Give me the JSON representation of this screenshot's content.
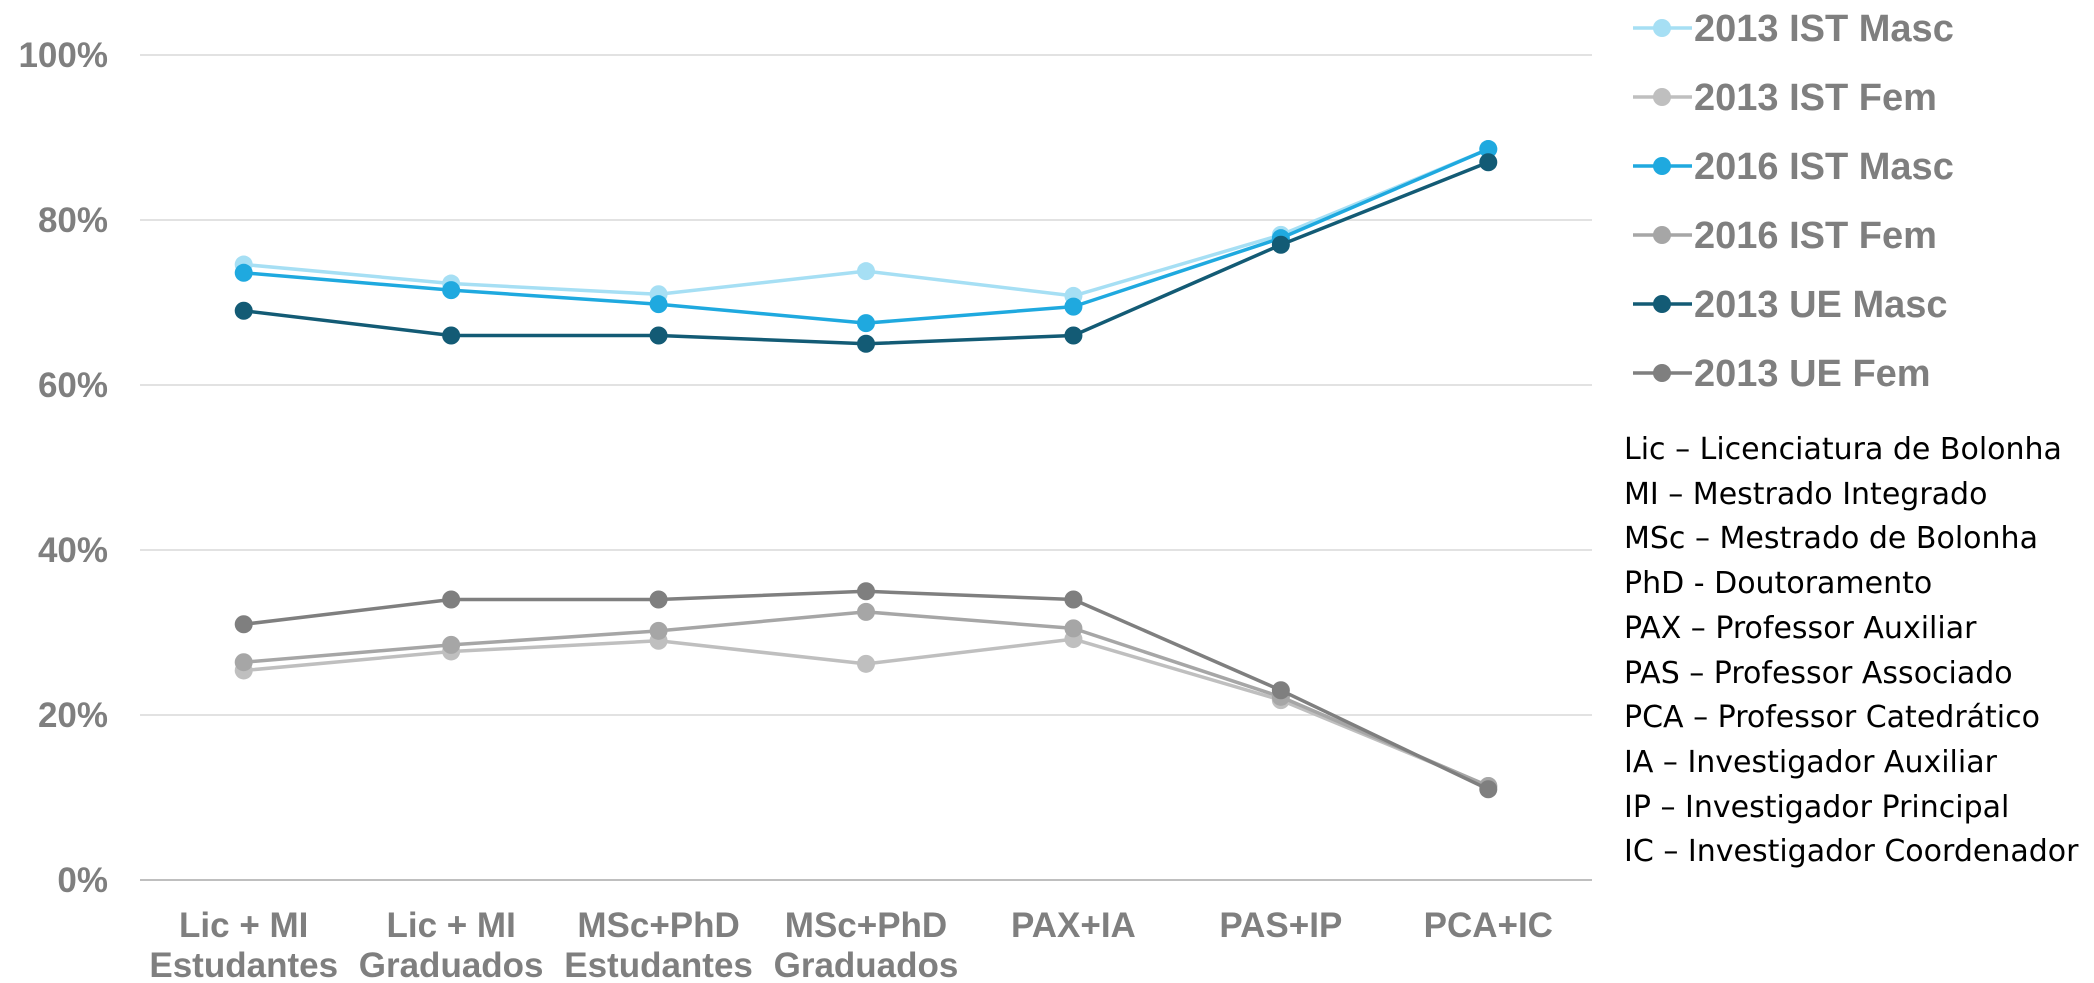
{
  "chart_data": {
    "type": "line",
    "categories": [
      [
        "Lic + MI",
        "Estudantes"
      ],
      [
        "Lic + MI",
        "Graduados"
      ],
      [
        "MSc+PhD",
        "Estudantes"
      ],
      [
        "MSc+PhD",
        "Graduados"
      ],
      [
        "PAX+IA"
      ],
      [
        "PAS+IP"
      ],
      [
        "PCA+IC"
      ]
    ],
    "y_ticks": [
      "0%",
      "20%",
      "40%",
      "60%",
      "80%",
      "100%"
    ],
    "ylim": [
      0,
      100
    ],
    "grid": true,
    "legend_position": "right",
    "series": [
      {
        "name": "2013 IST Masc",
        "color": "#a6dff4",
        "values": [
          74.6,
          72.3,
          71.0,
          73.8,
          70.8,
          78.2,
          88.6
        ]
      },
      {
        "name": "2013 IST Fem",
        "color": "#bfbfbf",
        "values": [
          25.4,
          27.7,
          29.0,
          26.2,
          29.2,
          21.8,
          11.4
        ]
      },
      {
        "name": "2016 IST Masc",
        "color": "#1fa9df",
        "values": [
          73.6,
          71.5,
          69.8,
          67.5,
          69.5,
          77.8,
          88.6
        ]
      },
      {
        "name": "2016 IST Fem",
        "color": "#a6a6a6",
        "values": [
          26.4,
          28.5,
          30.2,
          32.5,
          30.5,
          22.2,
          11.4
        ]
      },
      {
        "name": "2013 UE Masc",
        "color": "#135b75",
        "values": [
          69.0,
          66.0,
          66.0,
          65.0,
          66.0,
          77.0,
          87.0
        ]
      },
      {
        "name": "2013 UE Fem",
        "color": "#7f7f7f",
        "values": [
          31.0,
          34.0,
          34.0,
          35.0,
          34.0,
          23.0,
          11.0
        ]
      }
    ]
  },
  "glossary": [
    "Lic – Licenciatura de Bolonha",
    "MI – Mestrado Integrado",
    "MSc – Mestrado de Bolonha",
    "PhD - Doutoramento",
    "PAX – Professor Auxiliar",
    "PAS – Professor Associado",
    "PCA – Professor Catedrático",
    "IA – Investigador Auxiliar",
    "IP – Investigador Principal",
    "IC – Investigador Coordenador"
  ]
}
